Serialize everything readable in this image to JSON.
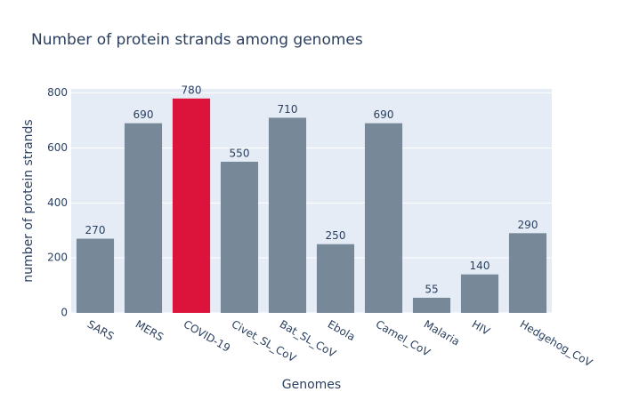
{
  "chart_data": {
    "type": "bar",
    "title": "Number of protein strands among genomes",
    "x_label": "Genomes",
    "y_label": "number of protein strands",
    "categories": [
      "SARS",
      "MERS",
      "COVID-19",
      "Civet_SL_CoV",
      "Bat_SL_CoV",
      "Ebola",
      "Camel_CoV",
      "Malaria",
      "HIV",
      "Hedgehog_CoV"
    ],
    "values": [
      270,
      690,
      780,
      550,
      710,
      250,
      690,
      55,
      140,
      290
    ],
    "colors": [
      "#778899",
      "#778899",
      "#dc143c",
      "#778899",
      "#778899",
      "#778899",
      "#778899",
      "#778899",
      "#778899",
      "#778899"
    ],
    "ylim": [
      0,
      815
    ],
    "yticks": [
      0,
      200,
      400,
      600,
      800
    ],
    "grid": true
  }
}
